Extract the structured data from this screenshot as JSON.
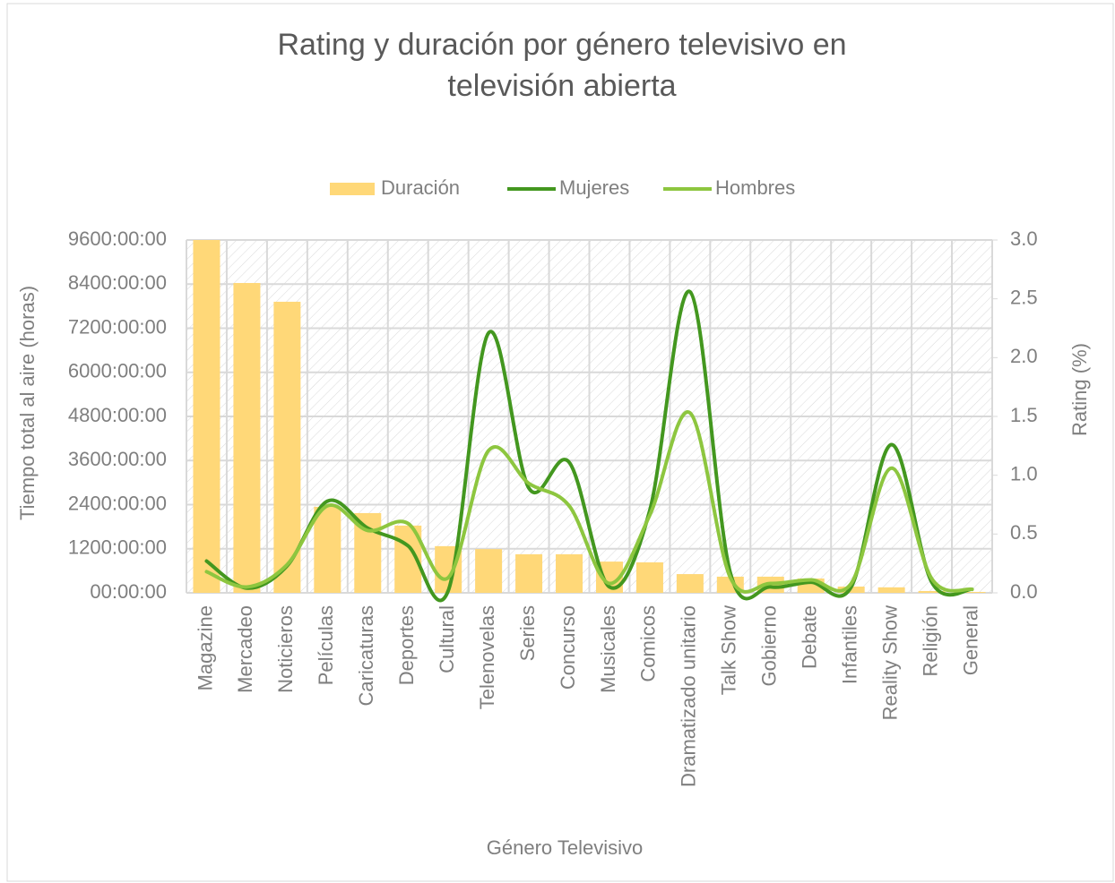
{
  "chart_data": {
    "type": "bar",
    "title": "Rating y duración por género televisivo en televisión abierta",
    "x_label": "Género Televisivo",
    "y_label": "Tiempo total al aire (horas)",
    "y2_label": "Rating (%)",
    "categories": [
      "Magazine",
      "Mercadeo",
      "Noticieros",
      "Películas",
      "Caricaturas",
      "Deportes",
      "Cultural",
      "Telenovelas",
      "Series",
      "Concurso",
      "Musicales",
      "Comicos",
      "Dramatizado unitario",
      "Talk Show",
      "Gobierno",
      "Debate",
      "Infantiles",
      "Reality Show",
      "Religión",
      "General"
    ],
    "series": [
      {
        "name": "Duración",
        "type": "bar",
        "color": "#ffd878",
        "values": [
          9600,
          8430,
          7920,
          2340,
          2170,
          1830,
          1270,
          1190,
          1050,
          1050,
          850,
          830,
          510,
          440,
          440,
          390,
          170,
          150,
          50,
          25
        ]
      },
      {
        "name": "Mujeres",
        "type": "line",
        "axis": "y2",
        "color": "#43971f",
        "values": [
          0.27,
          0.04,
          0.23,
          0.78,
          0.55,
          0.4,
          0.02,
          2.21,
          0.89,
          1.11,
          0.05,
          0.7,
          2.56,
          0.17,
          0.05,
          0.09,
          0.05,
          1.26,
          0.09,
          0.03
        ]
      },
      {
        "name": "Hombres",
        "type": "line",
        "axis": "y2",
        "color": "#8dc63f",
        "values": [
          0.18,
          0.05,
          0.24,
          0.74,
          0.53,
          0.59,
          0.13,
          1.21,
          0.93,
          0.74,
          0.08,
          0.66,
          1.53,
          0.13,
          0.08,
          0.11,
          0.08,
          1.06,
          0.12,
          0.03
        ]
      }
    ],
    "ylim": [
      0,
      9600
    ],
    "yticks": [
      {
        "value": 0,
        "label": "00:00:00"
      },
      {
        "value": 1200,
        "label": "1200:00:00"
      },
      {
        "value": 2400,
        "label": "2400:00:00"
      },
      {
        "value": 3600,
        "label": "3600:00:00"
      },
      {
        "value": 4800,
        "label": "4800:00:00"
      },
      {
        "value": 6000,
        "label": "6000:00:00"
      },
      {
        "value": 7200,
        "label": "7200:00:00"
      },
      {
        "value": 8400,
        "label": "8400:00:00"
      },
      {
        "value": 9600,
        "label": "9600:00:00"
      }
    ],
    "y2lim": [
      0,
      3
    ],
    "y2ticks": [
      {
        "value": 0,
        "label": "0.0"
      },
      {
        "value": 0.5,
        "label": "0.5"
      },
      {
        "value": 1,
        "label": "1.0"
      },
      {
        "value": 1.5,
        "label": "1.5"
      },
      {
        "value": 2,
        "label": "2.0"
      },
      {
        "value": 2.5,
        "label": "2.5"
      },
      {
        "value": 3,
        "label": "3.0"
      }
    ],
    "grid": true,
    "legend": "top"
  }
}
